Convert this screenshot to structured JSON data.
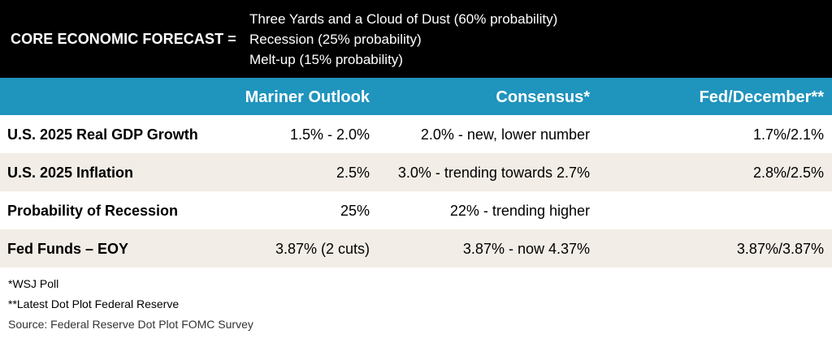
{
  "banner": {
    "label": "CORE ECONOMIC FORECAST =",
    "scenarios": [
      "Three Yards and a Cloud of Dust (60% probability)",
      "Recession (25% probability)",
      "Melt-up (15% probability)"
    ]
  },
  "table": {
    "headers": [
      "",
      "Mariner Outlook",
      "Consensus*",
      "Fed/December**"
    ],
    "rows": [
      [
        "U.S. 2025 Real GDP Growth",
        "1.5% - 2.0%",
        "2.0% - new, lower number",
        "1.7%/2.1%"
      ],
      [
        "U.S. 2025 Inflation",
        "2.5%",
        "3.0% - trending towards 2.7%",
        "2.8%/2.5%"
      ],
      [
        "Probability of Recession",
        "25%",
        "22% - trending higher",
        ""
      ],
      [
        "Fed Funds – EOY",
        "3.87% (2 cuts)",
        "3.87% - now 4.37%",
        "3.87%/3.87%"
      ]
    ]
  },
  "notes": {
    "consensus_note": "*WSJ Poll",
    "fed_note": "**Latest Dot Plot Federal Reserve",
    "source": "Source: Federal Reserve Dot Plot FOMC Survey"
  },
  "colors": {
    "banner_bg": "#000000",
    "header_bg": "#1f94bd",
    "alt_row_bg": "#f2ede6"
  }
}
